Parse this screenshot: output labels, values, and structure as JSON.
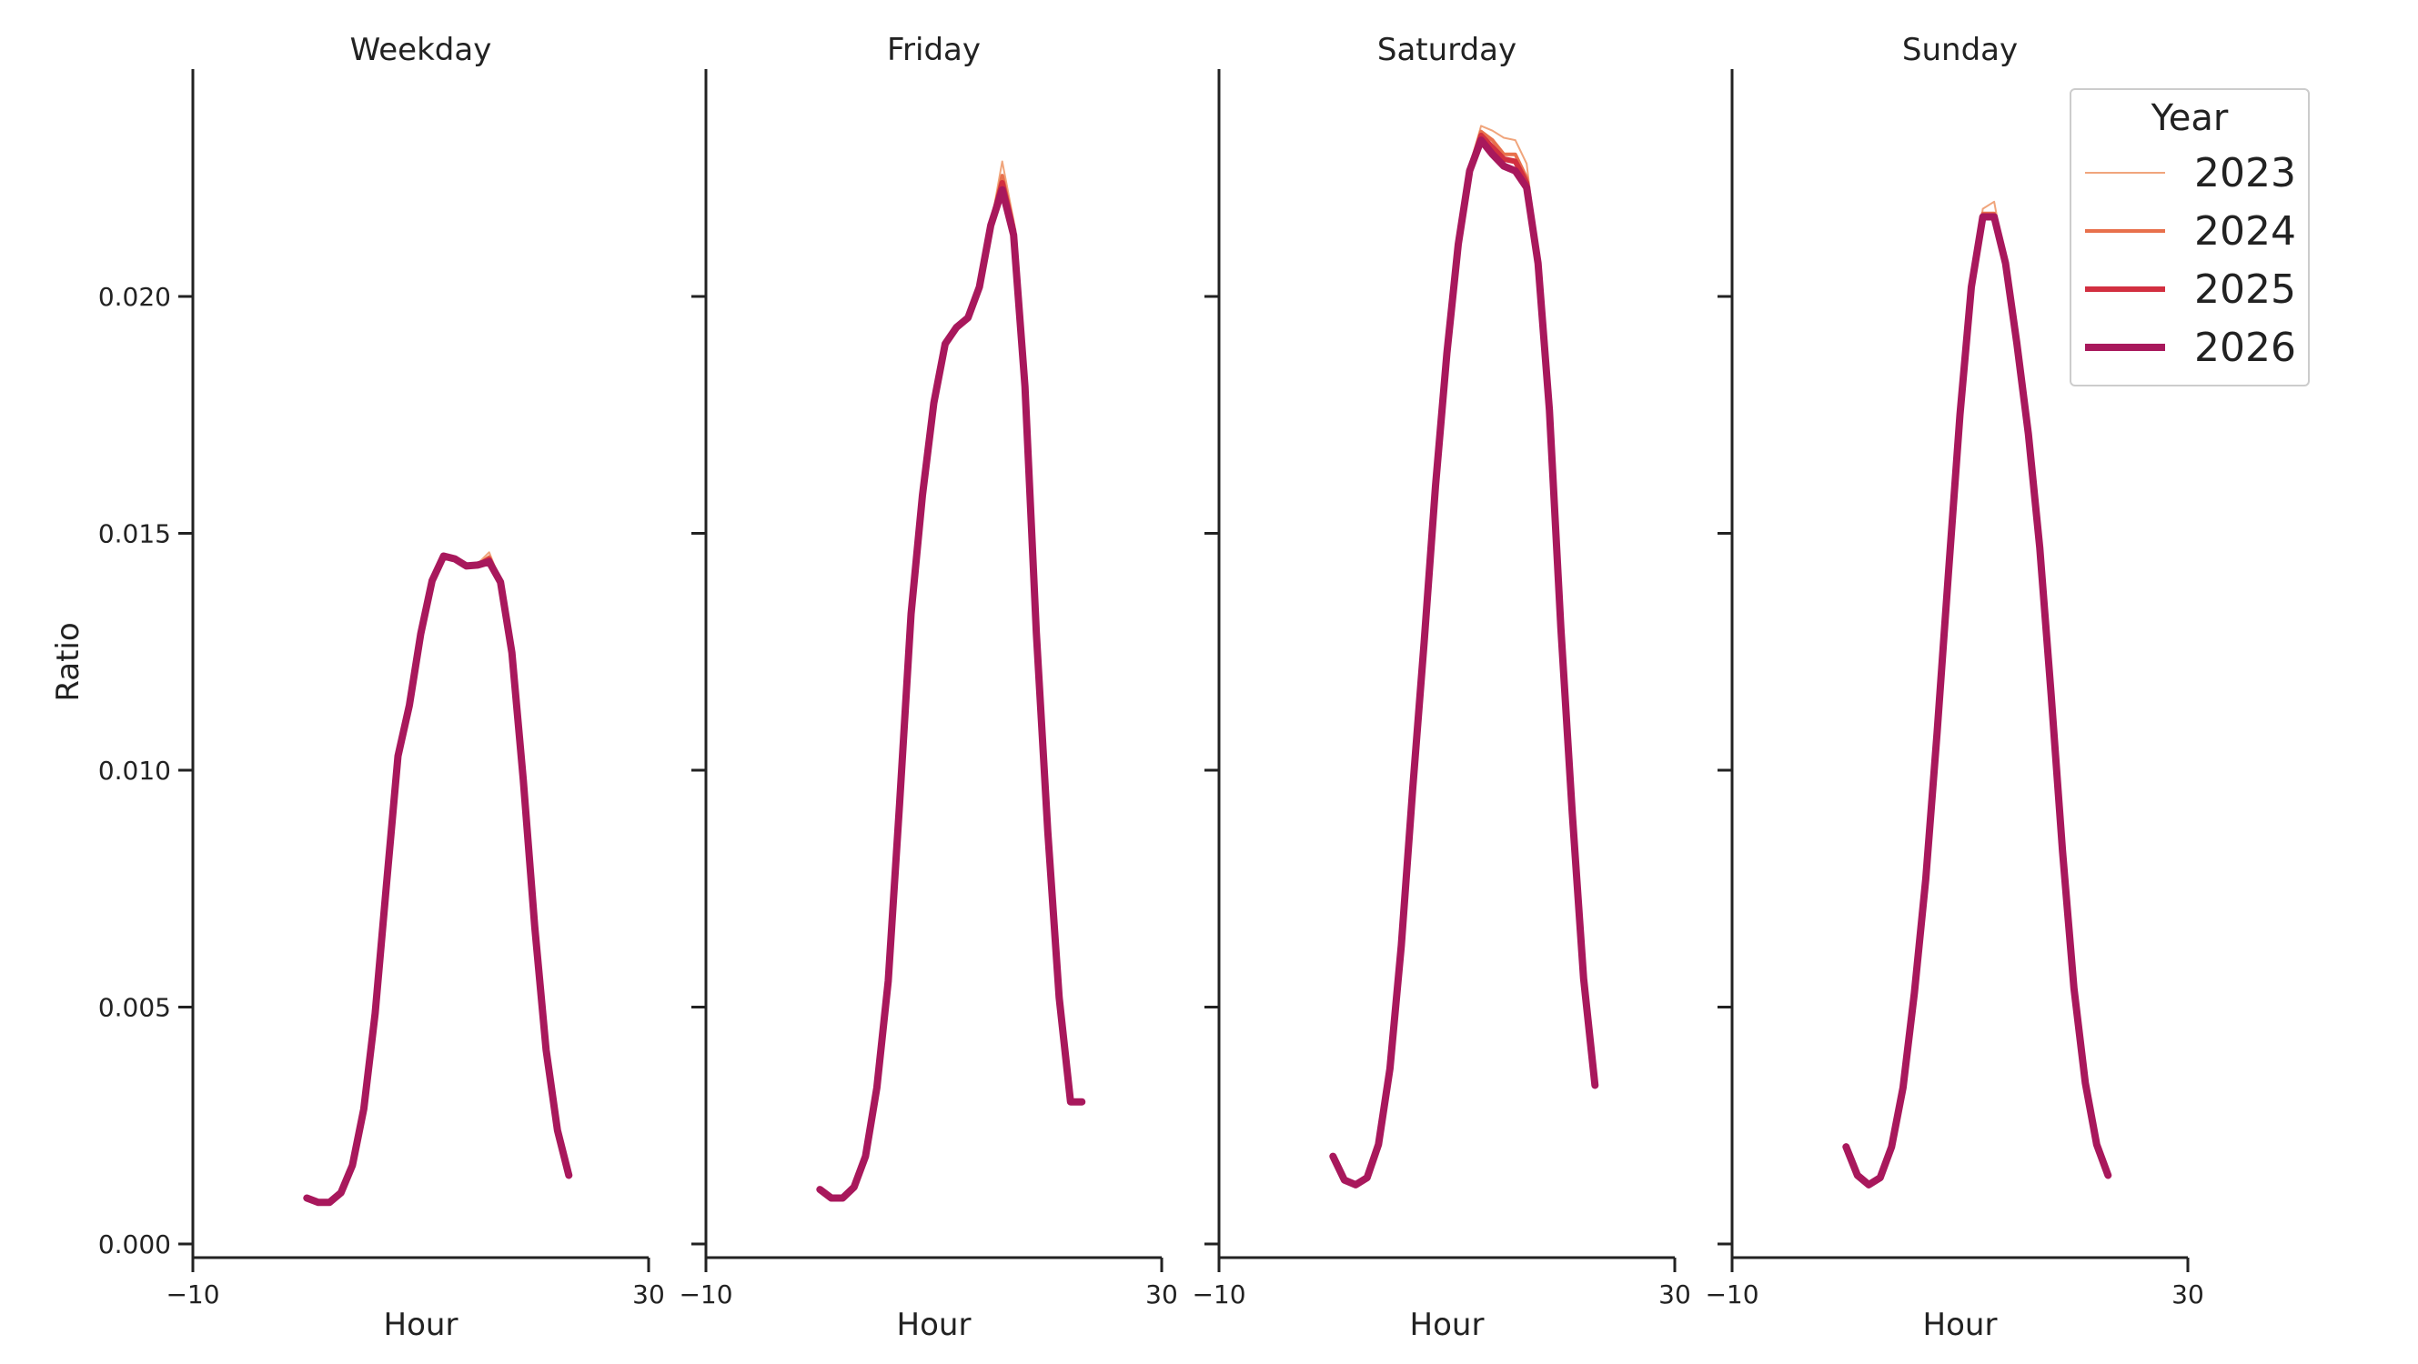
{
  "chart_data": {
    "type": "line",
    "ylabel": "Ratio",
    "ylim": [
      0,
      0.0248
    ],
    "yticks": [
      0.0,
      0.005,
      0.01,
      0.015,
      0.02
    ],
    "ytick_labels": [
      "0.000",
      "0.005",
      "0.010",
      "0.015",
      "0.020"
    ],
    "grid": false,
    "legend": {
      "title": "Year",
      "placement": "top-right",
      "entries": [
        "2023",
        "2024",
        "2025",
        "2026"
      ]
    },
    "series_colors": {
      "2023": "#f0a57c",
      "2024": "#e8704c",
      "2025": "#d22f40",
      "2026": "#a8185c"
    },
    "panels": [
      {
        "title": "Weekday",
        "xlabel": "Hour",
        "xlim": [
          -10,
          30
        ],
        "xtick_labels": [
          "−10",
          "30"
        ],
        "x": [
          0,
          1,
          2,
          3,
          4,
          5,
          6,
          7,
          8,
          9,
          10,
          11,
          12,
          13,
          14,
          15,
          16,
          17,
          18,
          19,
          20,
          21,
          22,
          23
        ],
        "series": [
          {
            "name": "2023",
            "values": [
              0.00097,
              0.00088,
              0.00088,
              0.00108,
              0.00166,
              0.00285,
              0.00487,
              0.0076,
              0.0103,
              0.01137,
              0.01288,
              0.014,
              0.01453,
              0.01447,
              0.01433,
              0.01436,
              0.0146,
              0.014,
              0.0125,
              0.0098,
              0.0067,
              0.0041,
              0.0024,
              0.00145
            ]
          },
          {
            "name": "2024",
            "values": [
              0.00097,
              0.00088,
              0.00088,
              0.00108,
              0.00166,
              0.00285,
              0.00487,
              0.0076,
              0.0103,
              0.01137,
              0.01288,
              0.014,
              0.01452,
              0.01446,
              0.01431,
              0.01433,
              0.0145,
              0.01398,
              0.01248,
              0.0098,
              0.0067,
              0.0041,
              0.0024,
              0.00145
            ]
          },
          {
            "name": "2025",
            "values": [
              0.00097,
              0.00088,
              0.00088,
              0.00108,
              0.00166,
              0.00285,
              0.00487,
              0.0076,
              0.0103,
              0.01137,
              0.01288,
              0.014,
              0.01452,
              0.01446,
              0.01431,
              0.01433,
              0.01445,
              0.01397,
              0.01248,
              0.0098,
              0.0067,
              0.0041,
              0.0024,
              0.00145
            ]
          },
          {
            "name": "2026",
            "values": [
              0.00097,
              0.00088,
              0.00088,
              0.00108,
              0.00166,
              0.00285,
              0.00487,
              0.0076,
              0.0103,
              0.01137,
              0.01288,
              0.014,
              0.01452,
              0.01446,
              0.01431,
              0.01433,
              0.0144,
              0.01397,
              0.01248,
              0.0098,
              0.0067,
              0.0041,
              0.0024,
              0.00145
            ]
          }
        ]
      },
      {
        "title": "Friday",
        "xlabel": "Hour",
        "xlim": [
          -10,
          30
        ],
        "xtick_labels": [
          "−10",
          "30"
        ],
        "x": [
          0,
          1,
          2,
          3,
          4,
          5,
          6,
          7,
          8,
          9,
          10,
          11,
          12,
          13,
          14,
          15,
          16,
          17,
          18,
          19,
          20,
          21,
          22,
          23
        ],
        "series": [
          {
            "name": "2023",
            "values": [
              0.00115,
              0.00097,
              0.00097,
              0.0012,
              0.00185,
              0.0033,
              0.00555,
              0.0093,
              0.0133,
              0.0158,
              0.01775,
              0.019,
              0.01935,
              0.01955,
              0.0202,
              0.0215,
              0.02285,
              0.0216,
              0.0181,
              0.0129,
              0.0087,
              0.0052,
              0.003,
              0.003
            ]
          },
          {
            "name": "2024",
            "values": [
              0.00115,
              0.00097,
              0.00097,
              0.0012,
              0.00185,
              0.0033,
              0.00555,
              0.0093,
              0.0133,
              0.0158,
              0.01775,
              0.019,
              0.01935,
              0.01955,
              0.0202,
              0.0215,
              0.02255,
              0.0215,
              0.0181,
              0.0129,
              0.0087,
              0.0052,
              0.003,
              0.003
            ]
          },
          {
            "name": "2025",
            "values": [
              0.00115,
              0.00097,
              0.00097,
              0.0012,
              0.00185,
              0.0033,
              0.00555,
              0.0093,
              0.0133,
              0.0158,
              0.01775,
              0.019,
              0.01935,
              0.01955,
              0.0202,
              0.0215,
              0.0224,
              0.0214,
              0.0181,
              0.0129,
              0.0087,
              0.0052,
              0.003,
              0.003
            ]
          },
          {
            "name": "2026",
            "values": [
              0.00115,
              0.00097,
              0.00097,
              0.0012,
              0.00185,
              0.0033,
              0.00555,
              0.0093,
              0.0133,
              0.0158,
              0.01775,
              0.019,
              0.01935,
              0.01955,
              0.0202,
              0.0215,
              0.02225,
              0.0213,
              0.0181,
              0.0129,
              0.0087,
              0.0052,
              0.003,
              0.003
            ]
          }
        ]
      },
      {
        "title": "Saturday",
        "xlabel": "Hour",
        "xlim": [
          -10,
          30
        ],
        "xtick_labels": [
          "−10",
          "30"
        ],
        "x": [
          0,
          1,
          2,
          3,
          4,
          5,
          6,
          7,
          8,
          9,
          10,
          11,
          12,
          13,
          14,
          15,
          16,
          17,
          18,
          19,
          20,
          21,
          22,
          23
        ],
        "series": [
          {
            "name": "2023",
            "values": [
              0.00185,
              0.00135,
              0.00125,
              0.0014,
              0.0021,
              0.0037,
              0.0063,
              0.0096,
              0.0127,
              0.016,
              0.0188,
              0.0211,
              0.02275,
              0.0236,
              0.0235,
              0.02335,
              0.0233,
              0.0228,
              0.0208,
              0.0176,
              0.013,
              0.0091,
              0.0056,
              0.00335
            ]
          },
          {
            "name": "2024",
            "values": [
              0.00185,
              0.00135,
              0.00125,
              0.0014,
              0.0021,
              0.0037,
              0.0063,
              0.0096,
              0.0127,
              0.016,
              0.0188,
              0.0211,
              0.0227,
              0.02348,
              0.0233,
              0.023,
              0.023,
              0.0225,
              0.0207,
              0.0176,
              0.013,
              0.0091,
              0.0056,
              0.00335
            ]
          },
          {
            "name": "2025",
            "values": [
              0.00185,
              0.00135,
              0.00125,
              0.0014,
              0.0021,
              0.0037,
              0.0063,
              0.0096,
              0.0127,
              0.016,
              0.0188,
              0.0211,
              0.02268,
              0.0234,
              0.02315,
              0.0229,
              0.02285,
              0.0224,
              0.0207,
              0.0176,
              0.013,
              0.0091,
              0.0056,
              0.00335
            ]
          },
          {
            "name": "2026",
            "values": [
              0.00185,
              0.00135,
              0.00125,
              0.0014,
              0.0021,
              0.0037,
              0.0063,
              0.0096,
              0.0127,
              0.016,
              0.0188,
              0.0211,
              0.02265,
              0.0233,
              0.023,
              0.02275,
              0.02265,
              0.0223,
              0.0207,
              0.0176,
              0.013,
              0.0091,
              0.0056,
              0.00335
            ]
          }
        ]
      },
      {
        "title": "Sunday",
        "xlabel": "Hour",
        "xlim": [
          -10,
          30
        ],
        "xtick_labels": [
          "−10",
          "30"
        ],
        "x": [
          0,
          1,
          2,
          3,
          4,
          5,
          6,
          7,
          8,
          9,
          10,
          11,
          12,
          13,
          14,
          15,
          16,
          17,
          18,
          19,
          20,
          21,
          22,
          23
        ],
        "series": [
          {
            "name": "2023",
            "values": [
              0.00205,
              0.00145,
              0.00125,
              0.0014,
              0.00205,
              0.0033,
              0.0053,
              0.0077,
              0.0108,
              0.0142,
              0.0175,
              0.0202,
              0.02185,
              0.022,
              0.0207,
              0.019,
              0.0171,
              0.0147,
              0.0116,
              0.0083,
              0.0054,
              0.0034,
              0.0021,
              0.00145
            ]
          },
          {
            "name": "2024",
            "values": [
              0.00205,
              0.00145,
              0.00125,
              0.0014,
              0.00205,
              0.0033,
              0.0053,
              0.0077,
              0.0108,
              0.0142,
              0.0175,
              0.0202,
              0.02175,
              0.02175,
              0.0207,
              0.019,
              0.0171,
              0.0147,
              0.0116,
              0.0083,
              0.0054,
              0.0034,
              0.0021,
              0.00145
            ]
          },
          {
            "name": "2025",
            "values": [
              0.00205,
              0.00145,
              0.00125,
              0.0014,
              0.00205,
              0.0033,
              0.0053,
              0.0077,
              0.0108,
              0.0142,
              0.0175,
              0.0202,
              0.0217,
              0.0217,
              0.0207,
              0.019,
              0.0171,
              0.0147,
              0.0116,
              0.0083,
              0.0054,
              0.0034,
              0.0021,
              0.00145
            ]
          },
          {
            "name": "2026",
            "values": [
              0.00205,
              0.00145,
              0.00125,
              0.0014,
              0.00205,
              0.0033,
              0.0053,
              0.0077,
              0.0108,
              0.0142,
              0.0175,
              0.0202,
              0.02168,
              0.02168,
              0.0207,
              0.019,
              0.0171,
              0.0147,
              0.0116,
              0.0083,
              0.0054,
              0.0034,
              0.0021,
              0.00145
            ]
          }
        ]
      }
    ]
  }
}
